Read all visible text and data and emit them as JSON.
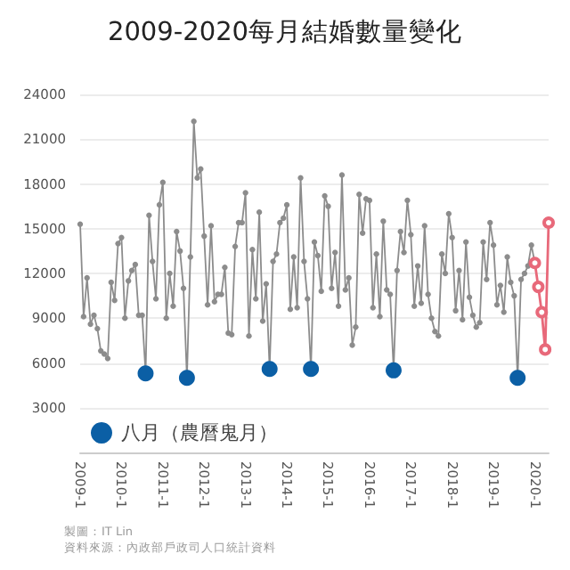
{
  "chart_data": {
    "type": "line",
    "title": "2009-2020每月結婚數量變化",
    "annotations": [
      "製圖：IT Lin",
      "資料來源：內政部戶政司人口統計資料"
    ],
    "categories": [
      "2009-1",
      null,
      null,
      null,
      null,
      null,
      null,
      null,
      null,
      null,
      null,
      null,
      "2010-1",
      null,
      null,
      null,
      null,
      null,
      null,
      null,
      null,
      null,
      null,
      null,
      "2011-1",
      null,
      null,
      null,
      null,
      null,
      null,
      null,
      null,
      null,
      null,
      null,
      "2012-1",
      null,
      null,
      null,
      null,
      null,
      null,
      null,
      null,
      null,
      null,
      null,
      "2013-1",
      null,
      null,
      null,
      null,
      null,
      null,
      null,
      null,
      null,
      null,
      null,
      "2014-1",
      null,
      null,
      null,
      null,
      null,
      null,
      null,
      null,
      null,
      null,
      null,
      "2015-1",
      null,
      null,
      null,
      null,
      null,
      null,
      null,
      null,
      null,
      null,
      null,
      "2016-1",
      null,
      null,
      null,
      null,
      null,
      null,
      null,
      null,
      null,
      null,
      null,
      "2017-1",
      null,
      null,
      null,
      null,
      null,
      null,
      null,
      null,
      null,
      null,
      null,
      "2018-1",
      null,
      null,
      null,
      null,
      null,
      null,
      null,
      null,
      null,
      null,
      null,
      "2019-1",
      null,
      null,
      null,
      null,
      null,
      null,
      null,
      null,
      null,
      null,
      null,
      "2020-1",
      null,
      null,
      null,
      null
    ],
    "series": [
      {
        "color": "#8c8c8c",
        "values": [
          15300,
          9100,
          11700,
          8600,
          9200,
          8300,
          6800,
          6600,
          6300,
          11400,
          10200,
          14000,
          14400,
          9000,
          11500,
          12200,
          12600,
          9200,
          9200,
          5300,
          15900,
          12800,
          10300,
          16600,
          18100,
          9000,
          12000,
          9800,
          14800,
          13500,
          11000,
          5000,
          13100,
          22200,
          18400,
          19000,
          14500,
          9900,
          15200,
          10100,
          10600,
          10600,
          12400,
          8000,
          7900,
          13800,
          15400,
          15400,
          17400,
          7800,
          13600,
          10300,
          16100,
          8800,
          11300,
          5600,
          12800,
          13300,
          15400,
          15700,
          16600,
          9600,
          13100,
          9700,
          18400,
          12800,
          10300,
          5600,
          14100,
          13200,
          10800,
          17200,
          16500,
          11000,
          13400,
          9800,
          18600,
          10900,
          11700,
          7200,
          8400,
          17300,
          14700,
          17000,
          16900,
          9700,
          13300,
          9100,
          15500,
          10900,
          10600,
          5500,
          12200,
          14800,
          13400,
          16900,
          14600,
          9800,
          12500,
          10000,
          15200,
          10600,
          9000,
          8100,
          7800,
          13300,
          12000,
          16000,
          14400,
          9500,
          12200,
          8900,
          14100,
          10400,
          9200,
          8400,
          8700,
          14100,
          11600,
          15400,
          13900,
          9900,
          11200,
          9400,
          13100,
          11400,
          10500,
          5000,
          11600,
          12000,
          12500,
          13900,
          12700,
          null,
          null,
          null,
          null
        ]
      },
      {
        "color": "#e8697a",
        "values": [
          null,
          null,
          null,
          null,
          null,
          null,
          null,
          null,
          null,
          null,
          null,
          null,
          null,
          null,
          null,
          null,
          null,
          null,
          null,
          null,
          null,
          null,
          null,
          null,
          null,
          null,
          null,
          null,
          null,
          null,
          null,
          null,
          null,
          null,
          null,
          null,
          null,
          null,
          null,
          null,
          null,
          null,
          null,
          null,
          null,
          null,
          null,
          null,
          null,
          null,
          null,
          null,
          null,
          null,
          null,
          null,
          null,
          null,
          null,
          null,
          null,
          null,
          null,
          null,
          null,
          null,
          null,
          null,
          null,
          null,
          null,
          null,
          null,
          null,
          null,
          null,
          null,
          null,
          null,
          null,
          null,
          null,
          null,
          null,
          null,
          null,
          null,
          null,
          null,
          null,
          null,
          null,
          null,
          null,
          null,
          null,
          null,
          null,
          null,
          null,
          null,
          null,
          null,
          null,
          null,
          null,
          null,
          null,
          null,
          null,
          null,
          null,
          null,
          null,
          null,
          null,
          null,
          null,
          null,
          null,
          null,
          null,
          null,
          null,
          null,
          null,
          null,
          null,
          null,
          null,
          null,
          null,
          12700,
          11100,
          9400,
          6900,
          15400
        ]
      },
      {
        "type": "scatter",
        "name": "八月（農曆鬼月）",
        "color": "#0b5fa5",
        "values": [
          null,
          null,
          null,
          null,
          null,
          null,
          null,
          null,
          null,
          null,
          null,
          null,
          null,
          null,
          null,
          null,
          null,
          null,
          null,
          5300,
          null,
          null,
          null,
          null,
          null,
          null,
          null,
          null,
          null,
          null,
          null,
          5000,
          null,
          null,
          null,
          null,
          null,
          null,
          null,
          null,
          null,
          null,
          null,
          null,
          null,
          null,
          null,
          null,
          null,
          null,
          null,
          null,
          null,
          null,
          null,
          5600,
          null,
          null,
          null,
          null,
          null,
          null,
          null,
          null,
          null,
          null,
          null,
          5600,
          null,
          null,
          null,
          null,
          null,
          null,
          null,
          null,
          null,
          null,
          null,
          null,
          null,
          null,
          null,
          null,
          null,
          null,
          null,
          null,
          null,
          null,
          null,
          5500,
          null,
          null,
          null,
          null,
          null,
          null,
          null,
          null,
          null,
          null,
          null,
          null,
          null,
          null,
          null,
          null,
          null,
          null,
          null,
          null,
          null,
          null,
          null,
          null,
          null,
          null,
          null,
          null,
          null,
          null,
          null,
          null,
          null,
          null,
          null,
          5000,
          null,
          null,
          null,
          null,
          null,
          null,
          null,
          null,
          null
        ]
      }
    ],
    "ylim": [
      0,
      24000
    ],
    "yticks": [
      3000,
      6000,
      9000,
      12000,
      15000,
      18000,
      21000,
      24000
    ],
    "grid": "y",
    "legend": "bottom left",
    "marker": "circle"
  }
}
